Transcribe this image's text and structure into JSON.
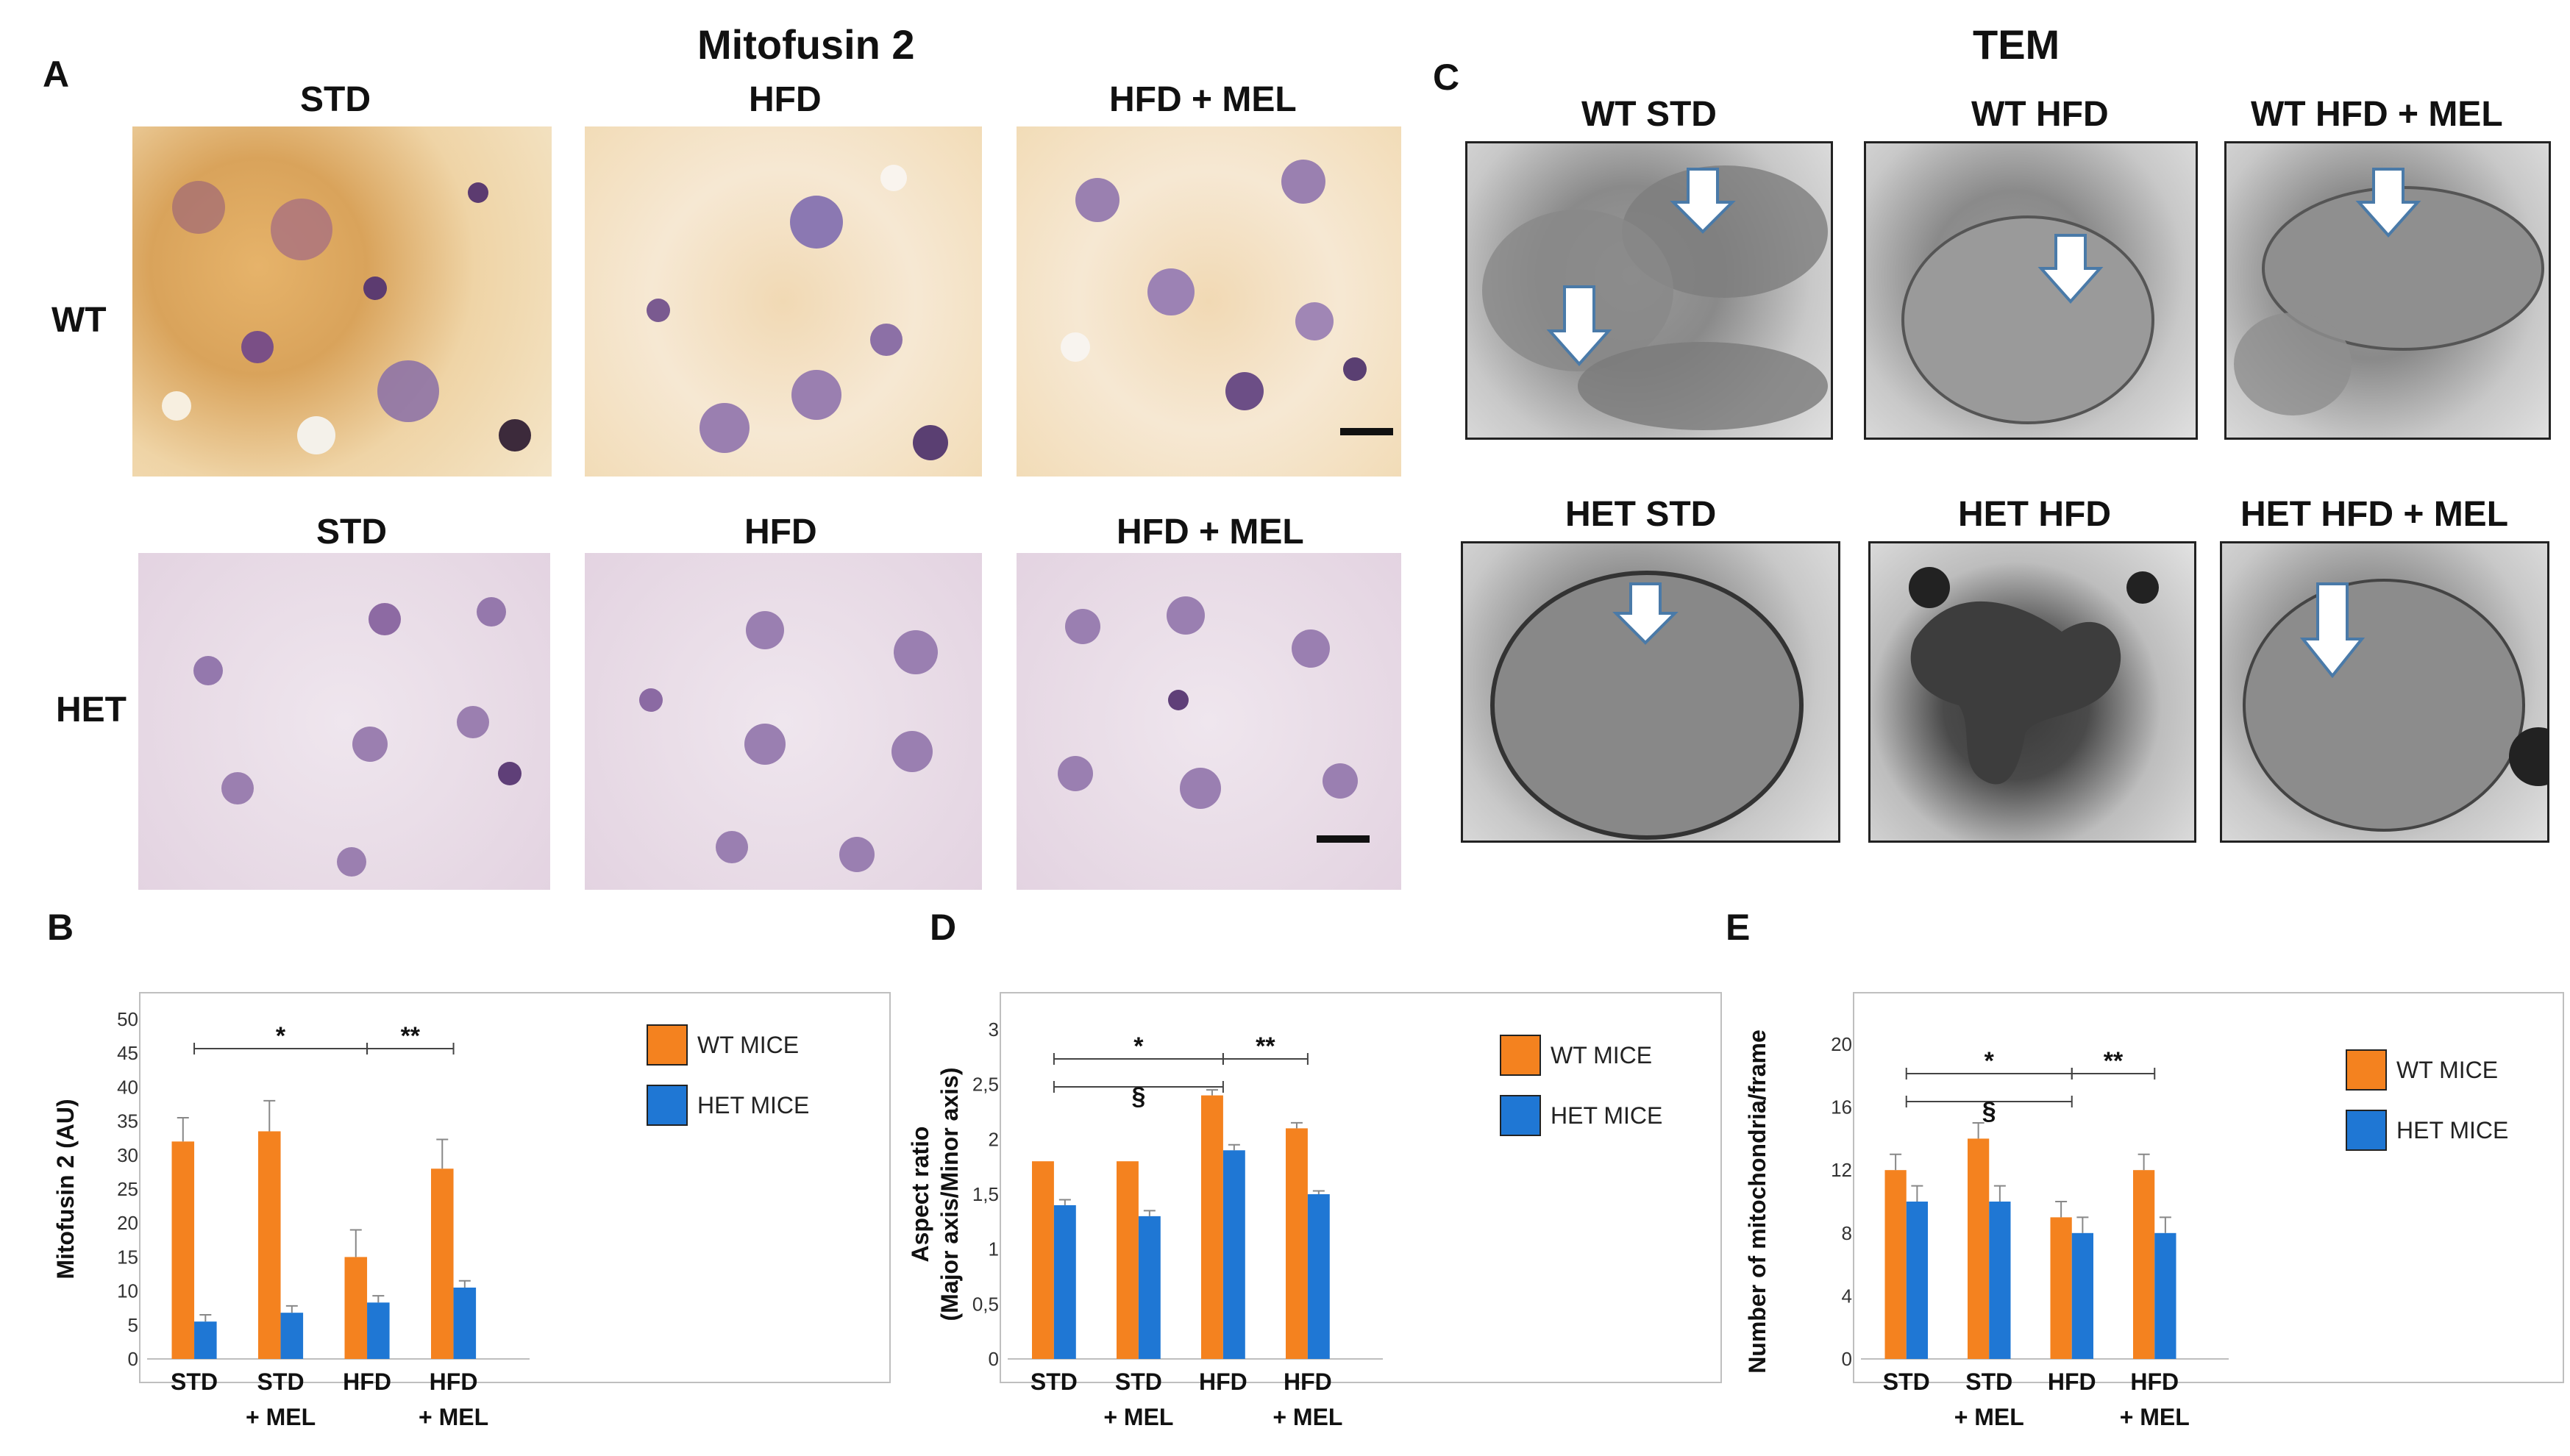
{
  "figure": {
    "panel_A": {
      "letter": "A",
      "title": "Mitofusin 2",
      "col_labels_top": [
        "STD",
        "HFD",
        "HFD + MEL"
      ],
      "col_labels_bottom": [
        "STD",
        "HFD",
        "HFD + MEL"
      ],
      "row_labels": [
        "WT",
        "HET"
      ]
    },
    "panel_C": {
      "letter": "C",
      "title": "TEM",
      "top_labels": [
        "WT STD",
        "WT HFD",
        "WT HFD + MEL"
      ],
      "bottom_labels": [
        "HET STD",
        "HET HFD",
        "HET HFD + MEL"
      ]
    },
    "colors": {
      "wt": "#f4821f",
      "het": "#1f77d4",
      "axis": "#999999",
      "grid": "#bfbfbf"
    }
  },
  "chart_data": [
    {
      "panel": "B",
      "type": "bar",
      "categories": [
        "STD",
        "STD\n+ MEL",
        "HFD",
        "HFD\n+ MEL"
      ],
      "ylabel": "Mitofusin 2 (AU)",
      "ylim": [
        0,
        50
      ],
      "yticks": [
        0,
        5,
        10,
        15,
        20,
        25,
        30,
        35,
        40,
        45,
        50
      ],
      "series": [
        {
          "name": "WT MICE",
          "values": [
            32,
            33.5,
            15,
            28
          ],
          "errors": [
            3.5,
            4.5,
            4,
            4.3
          ]
        },
        {
          "name": "HET MICE",
          "values": [
            5.5,
            6.8,
            8.3,
            10.5
          ],
          "errors": [
            1,
            1,
            1,
            1
          ]
        }
      ],
      "annotations": [
        {
          "text": "*",
          "from": 0,
          "to": 2
        },
        {
          "text": "**",
          "from": 2,
          "to": 3
        }
      ],
      "legend": "right"
    },
    {
      "panel": "D",
      "type": "bar",
      "categories": [
        "STD",
        "STD\n+ MEL",
        "HFD",
        "HFD\n+ MEL"
      ],
      "ylabel": "Aspect ratio\n(Major axis/Minor axis)",
      "ylim": [
        0,
        3
      ],
      "yticks": [
        "0",
        "0,5",
        "1",
        "1,5",
        "2",
        "2,5",
        "3"
      ],
      "series": [
        {
          "name": "WT MICE",
          "values": [
            1.8,
            1.8,
            2.4,
            2.1
          ],
          "errors": [
            0,
            0,
            0.05,
            0.05
          ]
        },
        {
          "name": "HET MICE",
          "values": [
            1.4,
            1.3,
            1.9,
            1.5
          ],
          "errors": [
            0.05,
            0.05,
            0.05,
            0.03
          ]
        }
      ],
      "annotations": [
        {
          "text": "*",
          "from": 0,
          "to": 2
        },
        {
          "text": "**",
          "from": 2,
          "to": 3
        },
        {
          "text": "§",
          "from": 0,
          "to": 2
        }
      ],
      "legend": "right"
    },
    {
      "panel": "E",
      "type": "bar",
      "categories": [
        "STD",
        "STD\n+ MEL",
        "HFD",
        "HFD\n+ MEL"
      ],
      "ylabel": "Number of mitochondria/frame",
      "ylim": [
        0,
        20
      ],
      "yticks": [
        0,
        4,
        8,
        12,
        16,
        20
      ],
      "series": [
        {
          "name": "WT MICE",
          "values": [
            12,
            14,
            9,
            12
          ],
          "errors": [
            1,
            1,
            1,
            1
          ]
        },
        {
          "name": "HET MICE",
          "values": [
            10,
            10,
            8,
            8
          ],
          "errors": [
            1,
            1,
            1,
            1
          ]
        }
      ],
      "annotations": [
        {
          "text": "*",
          "from": 0,
          "to": 2
        },
        {
          "text": "**",
          "from": 2,
          "to": 3
        },
        {
          "text": "§",
          "from": 0,
          "to": 2
        }
      ],
      "legend": "right"
    }
  ]
}
